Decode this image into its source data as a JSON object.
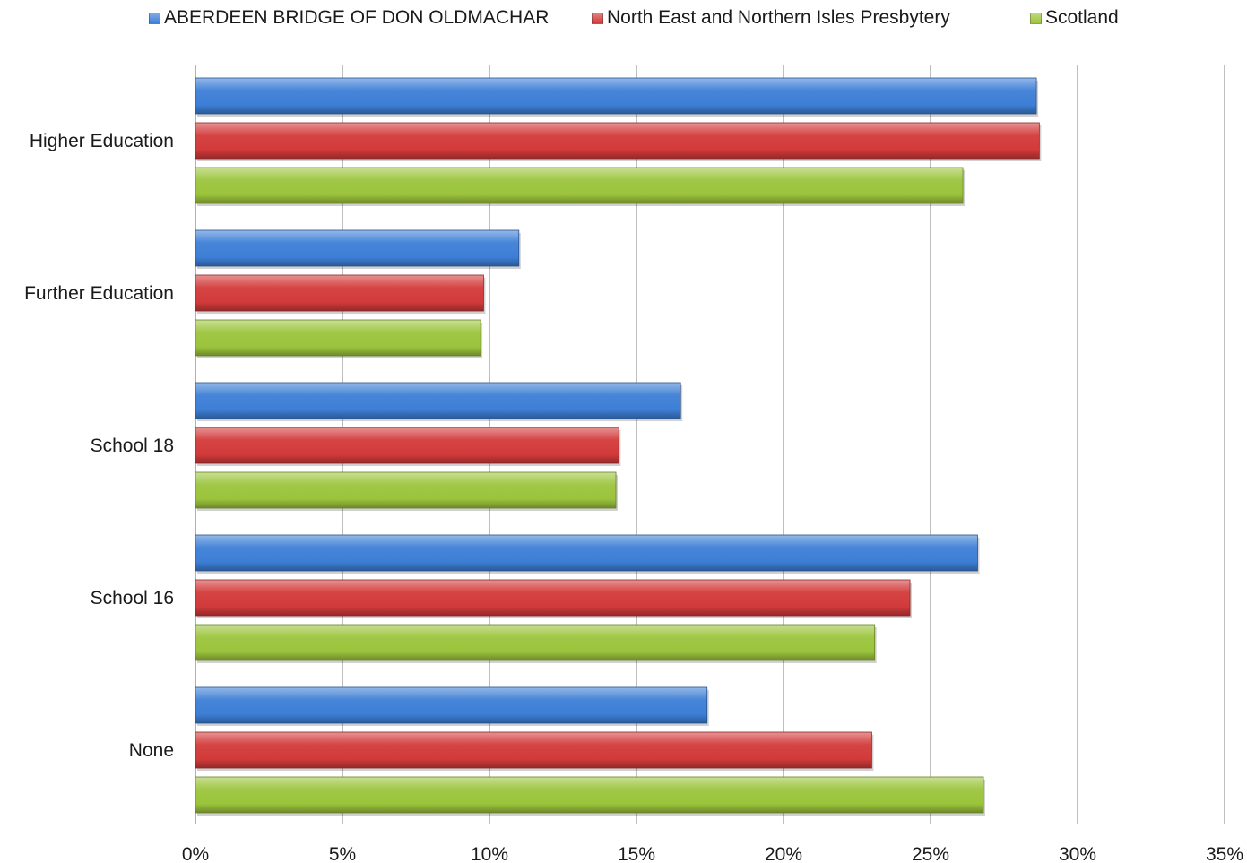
{
  "chart_data": {
    "type": "bar",
    "orientation": "horizontal",
    "categories": [
      "Higher Education",
      "Further Education",
      "School 18",
      "School 16",
      "None"
    ],
    "series": [
      {
        "name": "ABERDEEN BRIDGE OF DON OLDMACHAR",
        "color": "#3d7fd6",
        "values": [
          28.6,
          11.0,
          16.5,
          26.6,
          17.4
        ]
      },
      {
        "name": "North East and Northern Isles Presbytery",
        "color": "#d33a3a",
        "values": [
          28.7,
          9.8,
          14.4,
          24.3,
          23.0
        ]
      },
      {
        "name": "Scotland",
        "color": "#9bc43c",
        "values": [
          26.1,
          9.7,
          14.3,
          23.1,
          26.8
        ]
      }
    ],
    "x_ticks": [
      "0%",
      "5%",
      "10%",
      "15%",
      "20%",
      "25%",
      "30%",
      "35%"
    ],
    "xlim": [
      0,
      35
    ],
    "value_unit": "%",
    "grid": true,
    "legend_position": "top",
    "title": "",
    "xlabel": "",
    "ylabel": ""
  }
}
